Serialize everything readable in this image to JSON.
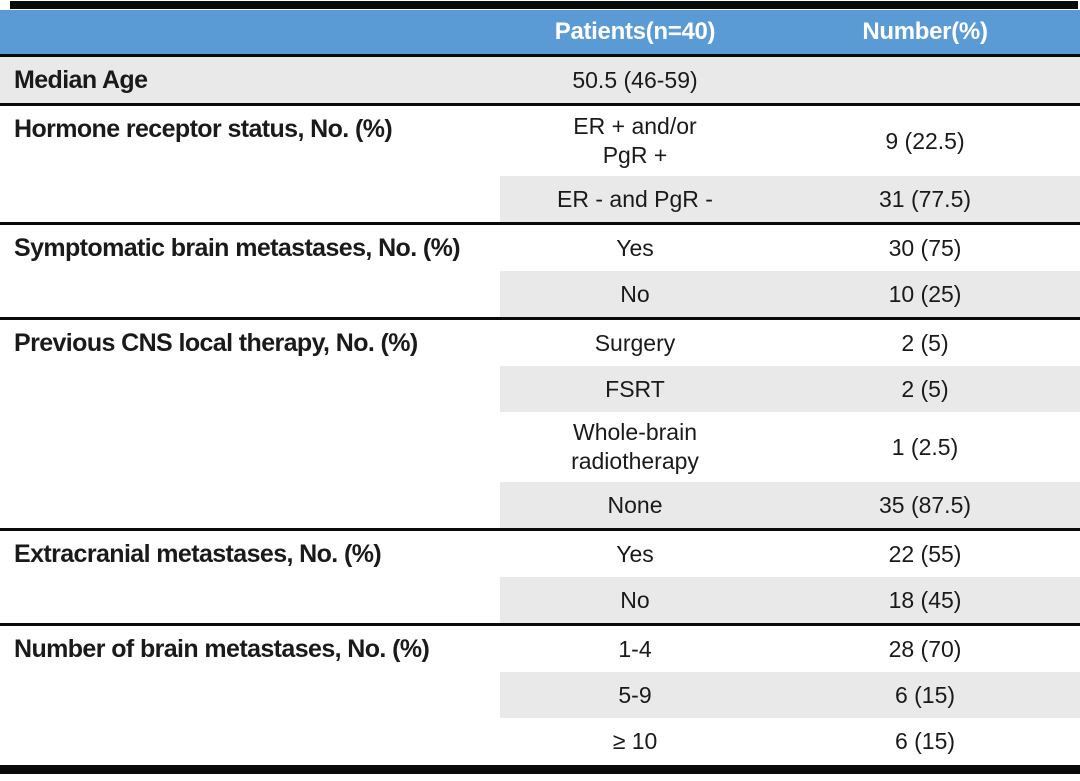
{
  "colors": {
    "header_bg": "#5b9bd5",
    "header_text": "#ffffff",
    "shade": "#e9e9e9",
    "text": "#1a1a1a",
    "border": "#0a0a0a"
  },
  "table": {
    "header": {
      "col1": "",
      "col2": "Patients(n=40)",
      "col3": "Number(%)"
    },
    "groups": [
      {
        "label": "Median Age",
        "fullshade": true,
        "rows": [
          {
            "value": "50.5 (46-59)",
            "number": "",
            "shaded": false
          }
        ]
      },
      {
        "label": "Hormone receptor status, No. (%)",
        "fullshade": false,
        "rows": [
          {
            "value": "ER + and/or\nPgR +",
            "number": "9 (22.5)",
            "shaded": false
          },
          {
            "value": "ER - and PgR -",
            "number": "31 (77.5)",
            "shaded": true
          }
        ]
      },
      {
        "label": "Symptomatic brain metastases, No. (%)",
        "fullshade": false,
        "rows": [
          {
            "value": "Yes",
            "number": "30 (75)",
            "shaded": false
          },
          {
            "value": "No",
            "number": "10 (25)",
            "shaded": true
          }
        ]
      },
      {
        "label": "Previous CNS local therapy, No. (%)",
        "fullshade": false,
        "rows": [
          {
            "value": "Surgery",
            "number": "2 (5)",
            "shaded": false
          },
          {
            "value": "FSRT",
            "number": "2 (5)",
            "shaded": true
          },
          {
            "value": "Whole-brain\nradiotherapy",
            "number": "1 (2.5)",
            "shaded": false
          },
          {
            "value": "None",
            "number": "35 (87.5)",
            "shaded": true
          }
        ]
      },
      {
        "label": "Extracranial metastases, No. (%)",
        "fullshade": false,
        "rows": [
          {
            "value": "Yes",
            "number": "22 (55)",
            "shaded": false
          },
          {
            "value": "No",
            "number": "18 (45)",
            "shaded": true
          }
        ]
      },
      {
        "label": "Number of brain metastases, No. (%)",
        "fullshade": false,
        "rows": [
          {
            "value": "1-4",
            "number": "28 (70)",
            "shaded": false
          },
          {
            "value": "5-9",
            "number": "6 (15)",
            "shaded": true
          },
          {
            "value": "≥ 10",
            "number": "6 (15)",
            "shaded": false
          }
        ]
      }
    ]
  }
}
